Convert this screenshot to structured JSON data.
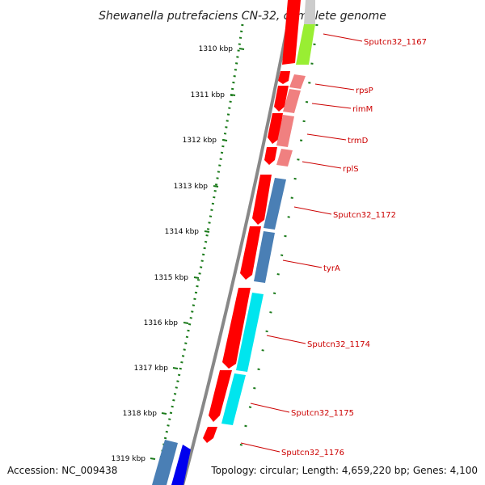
{
  "title": "Shewanella putrefaciens CN-32, complete genome",
  "footer": {
    "accession": "Accession: NC_009438",
    "topology": "Topology: circular; Length: 4,659,220 bp; Genes: 4,100"
  },
  "ticks": [
    "1310 kbp",
    "1311 kbp",
    "1312 kbp",
    "1313 kbp",
    "1314 kbp",
    "1315 kbp",
    "1316 kbp",
    "1317 kbp",
    "1318 kbp",
    "1319 kbp"
  ],
  "gene_labels": [
    "Sputcn32_1167",
    "rpsP",
    "rimM",
    "trmD",
    "rplS",
    "Sputcn32_1172",
    "tyrA",
    "Sputcn32_1174",
    "Sputcn32_1175",
    "Sputcn32_1176"
  ],
  "colors": {
    "cds": "#ff0000",
    "backbone": "#888888",
    "ticks": "#1a7a1a",
    "label": "#cc0000",
    "green": "#99ee33",
    "pink": "#f08080",
    "steelblue": "#4a7fb5",
    "cyan": "#00e5ee",
    "blue": "#0000ee"
  }
}
